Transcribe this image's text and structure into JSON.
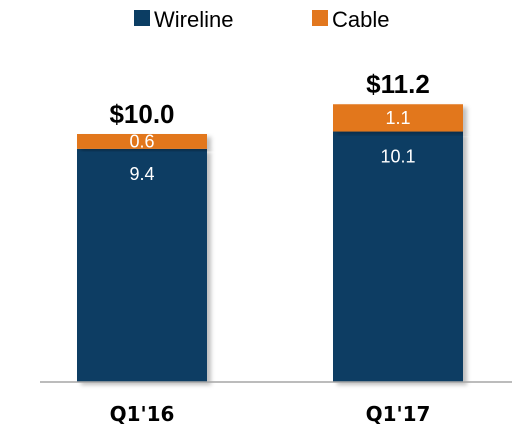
{
  "chart_data": {
    "type": "bar",
    "stacked": true,
    "categories": [
      "Q1'16",
      "Q1'17"
    ],
    "series": [
      {
        "name": "Wireline",
        "values": [
          9.4,
          10.1
        ],
        "labels": [
          "9.4",
          "10.1"
        ],
        "color": "#0b3d63"
      },
      {
        "name": "Cable",
        "values": [
          0.6,
          1.1
        ],
        "labels": [
          "0.6",
          "1.1"
        ],
        "color": "#e2771e"
      }
    ],
    "totals": [
      "$10.0",
      "$11.2"
    ],
    "legend_position": "top",
    "grid": false,
    "ylim": [
      0,
      11.5
    ]
  }
}
